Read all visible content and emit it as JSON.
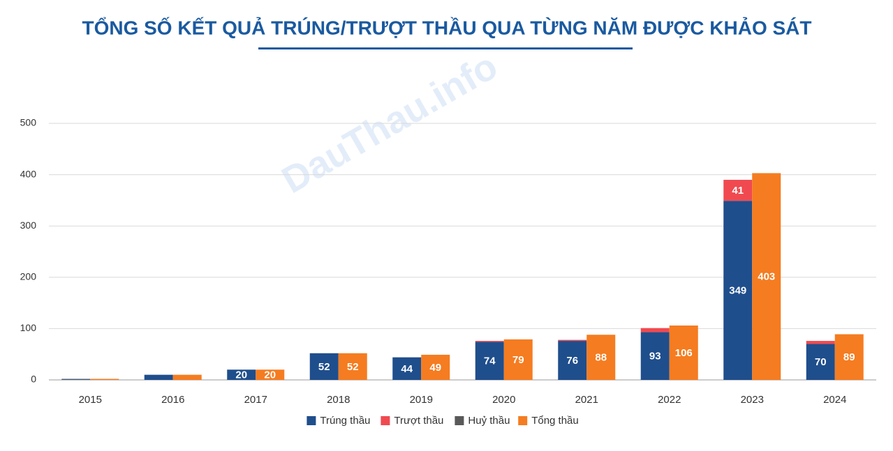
{
  "chart_data": {
    "type": "bar",
    "title": "TỔNG SỐ KẾT QUẢ TRÚNG/TRƯỢT THẦU QUA TỪNG NĂM ĐƯỢC KHẢO SÁT",
    "watermark": "DauThau.info",
    "categories": [
      "2015",
      "2016",
      "2017",
      "2018",
      "2019",
      "2020",
      "2021",
      "2022",
      "2023",
      "2024"
    ],
    "series": [
      {
        "name": "Trúng thầu",
        "color": "#1f4e8c",
        "group": 0,
        "values": [
          1,
          10,
          20,
          52,
          44,
          74,
          76,
          93,
          349,
          70
        ]
      },
      {
        "name": "Trượt thầu",
        "color": "#f04a50",
        "group": 0,
        "values": [
          0,
          0,
          0,
          0,
          0,
          2,
          2,
          8,
          41,
          6
        ]
      },
      {
        "name": "Huỷ thầu",
        "color": "#595959",
        "group": 0,
        "values": [
          1,
          0,
          0,
          0,
          0,
          0,
          0,
          0,
          0,
          0
        ]
      },
      {
        "name": "Tổng thầu",
        "color": "#f57c20",
        "group": 1,
        "values": [
          2,
          10,
          20,
          52,
          49,
          79,
          88,
          106,
          403,
          89
        ]
      }
    ],
    "ylim": [
      0,
      500
    ],
    "yticks": [
      0,
      100,
      200,
      300,
      400,
      500
    ],
    "grid": true,
    "legend": "bottom"
  }
}
